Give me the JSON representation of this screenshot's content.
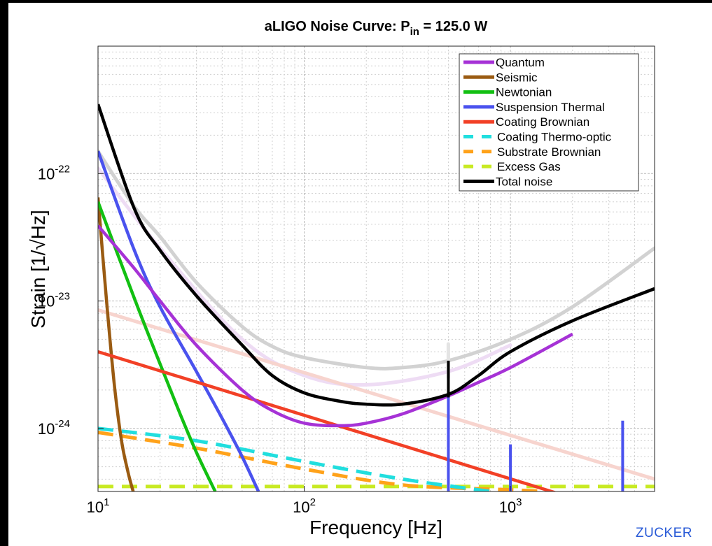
{
  "chart_data": {
    "type": "line",
    "title": "aLIGO Noise Curve: P",
    "title_sub": "in",
    "title_tail": " = 125.0 W",
    "xlabel": "Frequency [Hz]",
    "ylabel": "Strain [1/√Hz]",
    "x_scale": "log",
    "y_scale": "log",
    "xlim": [
      10,
      5000
    ],
    "ylim": [
      3.2e-25,
      1e-21
    ],
    "grid": true,
    "legend_position": "top-right",
    "x_ticks": [
      {
        "value": 10,
        "base": "10",
        "exp": "1"
      },
      {
        "value": 100,
        "base": "10",
        "exp": "2"
      },
      {
        "value": 1000,
        "base": "10",
        "exp": "3"
      }
    ],
    "y_ticks": [
      {
        "value": 1e-22,
        "base": "10",
        "exp": "-22"
      },
      {
        "value": 1e-23,
        "base": "10",
        "exp": "-23"
      },
      {
        "value": 1e-24,
        "base": "10",
        "exp": "-24"
      }
    ],
    "series": [
      {
        "name": "Quantum",
        "color": "#a632d6",
        "dash": false,
        "x": [
          10,
          15,
          20,
          30,
          50,
          70,
          100,
          150,
          200,
          300,
          500,
          700,
          1000,
          2000
        ],
        "y": [
          3.9e-23,
          1.8e-23,
          1e-23,
          4.5e-24,
          2e-24,
          1.38e-24,
          1.1e-24,
          1.05e-24,
          1.1e-24,
          1.3e-24,
          1.8e-24,
          2.3e-24,
          3e-24,
          5.5e-24
        ]
      },
      {
        "name": "Seismic",
        "color": "#9a5b12",
        "dash": false,
        "x": [
          10,
          11,
          12,
          13,
          14,
          14.8
        ],
        "y": [
          6.5e-23,
          1e-23,
          2.2e-24,
          8e-25,
          4.5e-25,
          3.2e-25
        ]
      },
      {
        "name": "Newtonian",
        "color": "#12c012",
        "dash": false,
        "x": [
          10,
          15,
          20,
          25,
          30,
          37
        ],
        "y": [
          6e-23,
          1.05e-23,
          3.2e-24,
          1.3e-24,
          6.5e-25,
          3.2e-25
        ]
      },
      {
        "name": "Suspension Thermal",
        "color": "#4a52ee",
        "dash": false,
        "x": [
          10,
          15,
          20,
          30,
          40,
          50,
          60
        ],
        "y": [
          1.5e-22,
          2.5e-23,
          9e-24,
          2.8e-24,
          1.2e-24,
          6e-25,
          3.2e-25
        ]
      },
      {
        "name": "Coating Brownian",
        "color": "#f24026",
        "dash": false,
        "x": [
          10,
          1800
        ],
        "y": [
          4e-24,
          3e-25
        ]
      },
      {
        "name": "Coating Thermo-optic",
        "color": "#21dede",
        "dash": true,
        "x": [
          10,
          30,
          100,
          300,
          800
        ],
        "y": [
          1e-24,
          8e-25,
          5.5e-25,
          4e-25,
          3.2e-25
        ]
      },
      {
        "name": "Substrate Brownian",
        "color": "#ffa21a",
        "dash": true,
        "x": [
          10,
          30,
          100,
          300,
          1000,
          1500
        ],
        "y": [
          9.3e-25,
          7e-25,
          4.8e-25,
          3.6e-25,
          3.3e-25,
          3.2e-25
        ]
      },
      {
        "name": "Excess Gas",
        "color": "#c8ea22",
        "dash": true,
        "x": [
          10,
          5000
        ],
        "y": [
          3.5e-25,
          3.5e-25
        ]
      },
      {
        "name": "Total noise",
        "color": "#000000",
        "dash": false,
        "x": [
          10,
          15,
          20,
          30,
          50,
          70,
          100,
          150,
          200,
          300,
          500,
          700,
          1000,
          2000,
          5000
        ],
        "y": [
          3.5e-22,
          5.3e-23,
          2.5e-23,
          1.1e-23,
          4.5e-24,
          2.6e-24,
          1.9e-24,
          1.63e-24,
          1.55e-24,
          1.55e-24,
          1.85e-24,
          2.6e-24,
          4e-24,
          7e-24,
          1.25e-23
        ]
      }
    ],
    "resonances": [
      {
        "x": 500,
        "y_low": 3.2e-25,
        "y_high": 1.75e-24,
        "color": "#4a52ee"
      },
      {
        "x": 1000,
        "y_low": 3.2e-25,
        "y_high": 7.5e-25,
        "color": "#4a52ee"
      },
      {
        "x": 3500,
        "y_low": 3.2e-25,
        "y_high": 1.15e-24,
        "color": "#4a52ee"
      },
      {
        "x": 500,
        "y_low": 1.75e-24,
        "y_high": 3.4e-24,
        "color": "#000000"
      }
    ],
    "background_curves": [
      {
        "color": "#d2d2d2",
        "x": [
          10,
          15,
          20,
          30,
          50,
          70,
          100,
          200,
          300,
          500,
          1000,
          2000,
          5000
        ],
        "y": [
          1.5e-22,
          5.5e-23,
          3.2e-23,
          1.4e-23,
          6.3e-24,
          4.4e-24,
          3.6e-24,
          3e-24,
          3e-24,
          3.4e-24,
          5e-24,
          9e-24,
          2.6e-23
        ]
      },
      {
        "color": "#eedcf4",
        "x": [
          10,
          20,
          50,
          100,
          200,
          500,
          1000
        ],
        "y": [
          1.1e-22,
          2.6e-23,
          5e-24,
          2.6e-24,
          2.2e-24,
          2.8e-24,
          4.5e-24
        ]
      },
      {
        "color": "#f7d4ce",
        "x": [
          10,
          5000
        ],
        "y": [
          8.5e-24,
          4e-25
        ]
      },
      {
        "color": "#e4e4e4",
        "x": [
          500,
          500
        ],
        "y": [
          2.5e-24,
          4.6e-24
        ]
      }
    ],
    "credit": "ZUCKER"
  }
}
